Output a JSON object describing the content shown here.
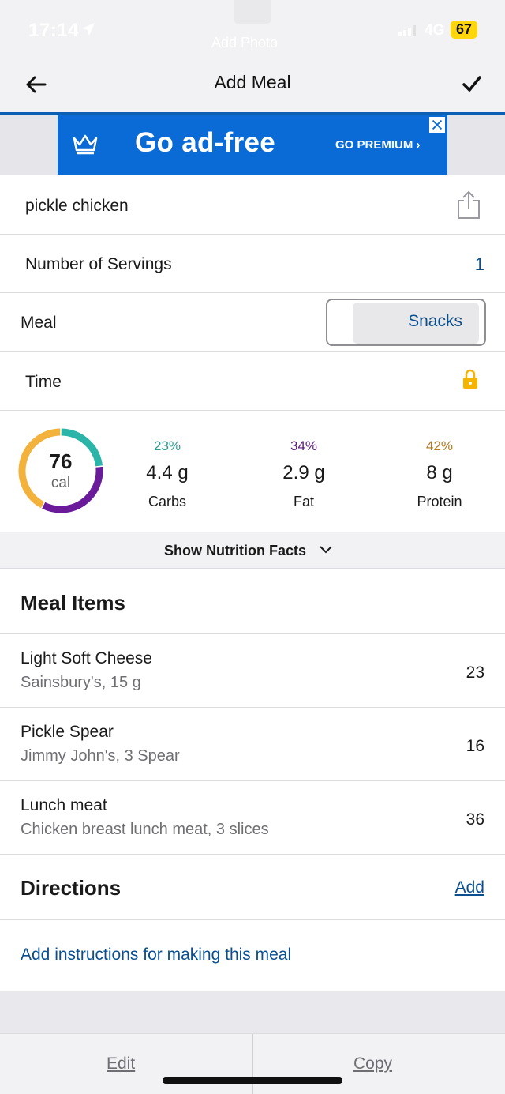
{
  "status_bar": {
    "time": "17:14",
    "network": "4G",
    "battery": "67",
    "faded_text": "Add Photo"
  },
  "nav": {
    "title": "Add Meal"
  },
  "ad": {
    "title": "Go ad-free",
    "cta": "GO PREMIUM ›"
  },
  "meal_name": "pickle chicken",
  "servings": {
    "label": "Number of Servings",
    "value": "1"
  },
  "meal": {
    "label": "Meal",
    "value": "Snacks"
  },
  "time": {
    "label": "Time"
  },
  "nutrition": {
    "calories": "76",
    "calories_unit": "cal",
    "macros": [
      {
        "pct": "23%",
        "amount": "4.4 g",
        "name": "Carbs",
        "color": "#2bb5a8"
      },
      {
        "pct": "34%",
        "amount": "2.9 g",
        "name": "Fat",
        "color": "#6a1b9a"
      },
      {
        "pct": "42%",
        "amount": "8 g",
        "name": "Protein",
        "color": "#b7791f"
      }
    ],
    "ring_fractions": [
      0.23,
      0.34,
      0.42
    ],
    "show_facts_label": "Show Nutrition Facts"
  },
  "meal_items": {
    "title": "Meal Items",
    "items": [
      {
        "name": "Light Soft Cheese",
        "desc": "Sainsbury's, 15 g",
        "cal": "23"
      },
      {
        "name": "Pickle Spear",
        "desc": "Jimmy John's, 3 Spear",
        "cal": "16"
      },
      {
        "name": "Lunch meat",
        "desc": "Chicken breast lunch meat, 3 slices",
        "cal": "36"
      }
    ]
  },
  "directions": {
    "title": "Directions",
    "add_label": "Add",
    "link": "Add instructions for making this meal"
  },
  "bottom": {
    "edit": "Edit",
    "copy": "Copy"
  },
  "colors": {
    "accent": "#0b4f8f",
    "ad_blue": "#0a6bd6",
    "carbs": "#2bb5a8",
    "fat": "#6a1b9a",
    "protein": "#f2b23c"
  }
}
